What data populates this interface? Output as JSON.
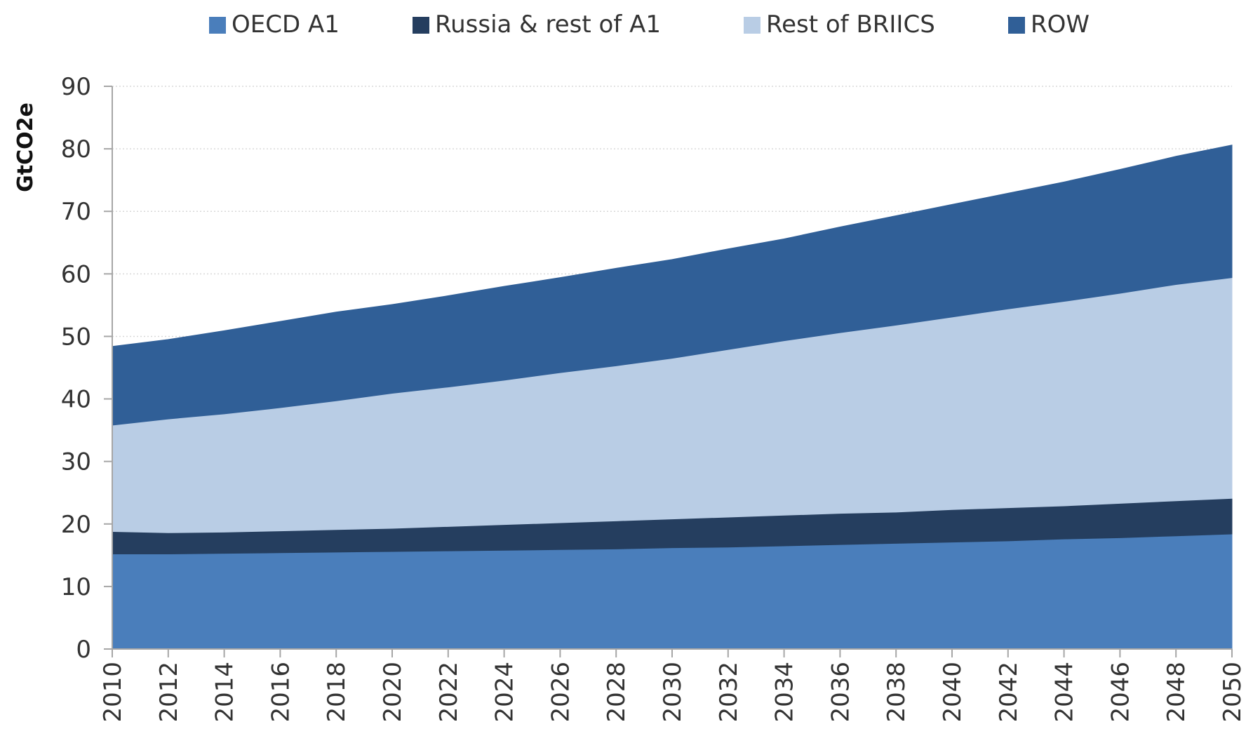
{
  "chart_data": {
    "type": "area",
    "stacked": true,
    "title": "",
    "xlabel": "",
    "ylabel": "GtCO2e",
    "ylim": [
      0,
      90
    ],
    "yticks": [
      0,
      10,
      20,
      30,
      40,
      50,
      60,
      70,
      80,
      90
    ],
    "grid": true,
    "legend_position": "top",
    "x": [
      "2010",
      "2012",
      "2014",
      "2016",
      "2018",
      "2020",
      "2022",
      "2024",
      "2026",
      "2028",
      "2030",
      "2032",
      "2034",
      "2036",
      "2038",
      "2040",
      "2042",
      "2044",
      "2046",
      "2048",
      "2050"
    ],
    "series": [
      {
        "name": "OECD A1",
        "color": "#4a7ebb",
        "values": [
          15.2,
          15.2,
          15.3,
          15.4,
          15.5,
          15.6,
          15.7,
          15.8,
          15.9,
          16.0,
          16.2,
          16.3,
          16.5,
          16.7,
          16.9,
          17.1,
          17.3,
          17.6,
          17.8,
          18.1,
          18.4
        ]
      },
      {
        "name": "Russia & rest of A1",
        "color": "#253e5f",
        "values": [
          3.6,
          3.4,
          3.4,
          3.5,
          3.6,
          3.7,
          3.9,
          4.1,
          4.3,
          4.5,
          4.6,
          4.8,
          4.9,
          5.0,
          5.0,
          5.2,
          5.3,
          5.3,
          5.5,
          5.6,
          5.7
        ]
      },
      {
        "name": "Rest of BRIICS",
        "color": "#b9cde5",
        "values": [
          17.0,
          18.2,
          18.9,
          19.7,
          20.6,
          21.6,
          22.3,
          23.1,
          24.0,
          24.8,
          25.7,
          26.8,
          27.9,
          28.9,
          29.9,
          30.8,
          31.8,
          32.7,
          33.6,
          34.6,
          35.3
        ]
      },
      {
        "name": "ROW",
        "color": "#305f97",
        "values": [
          12.6,
          12.7,
          13.3,
          13.8,
          14.2,
          14.2,
          14.6,
          15.0,
          15.2,
          15.6,
          15.8,
          16.1,
          16.3,
          16.9,
          17.5,
          18.0,
          18.5,
          19.1,
          19.8,
          20.5,
          21.2
        ]
      }
    ]
  }
}
